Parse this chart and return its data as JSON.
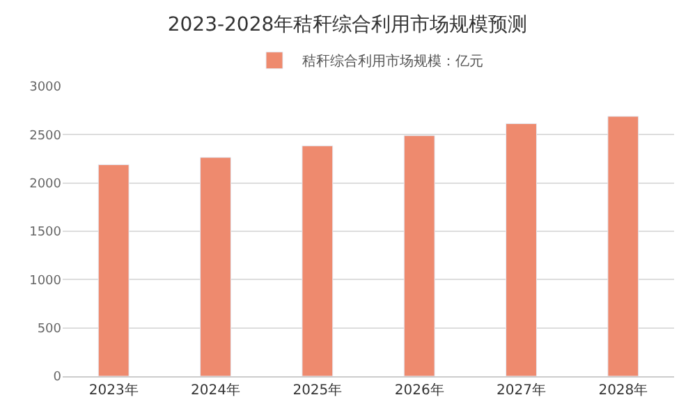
{
  "chart_data": {
    "type": "bar",
    "title": "2023-2028年秸秆综合利用市场规模预测",
    "categories": [
      "2023年",
      "2024年",
      "2025年",
      "2026年",
      "2027年",
      "2028年"
    ],
    "series": [
      {
        "name": "秸秆综合利用市场规模：亿元",
        "color": "#ee8a6e",
        "values": [
          2190,
          2265,
          2385,
          2490,
          2615,
          2690
        ]
      }
    ],
    "ylim": [
      0,
      3000
    ],
    "yticks": [
      0,
      500,
      1000,
      1500,
      2000,
      2500,
      3000
    ],
    "grid": "y",
    "legend": "top"
  }
}
